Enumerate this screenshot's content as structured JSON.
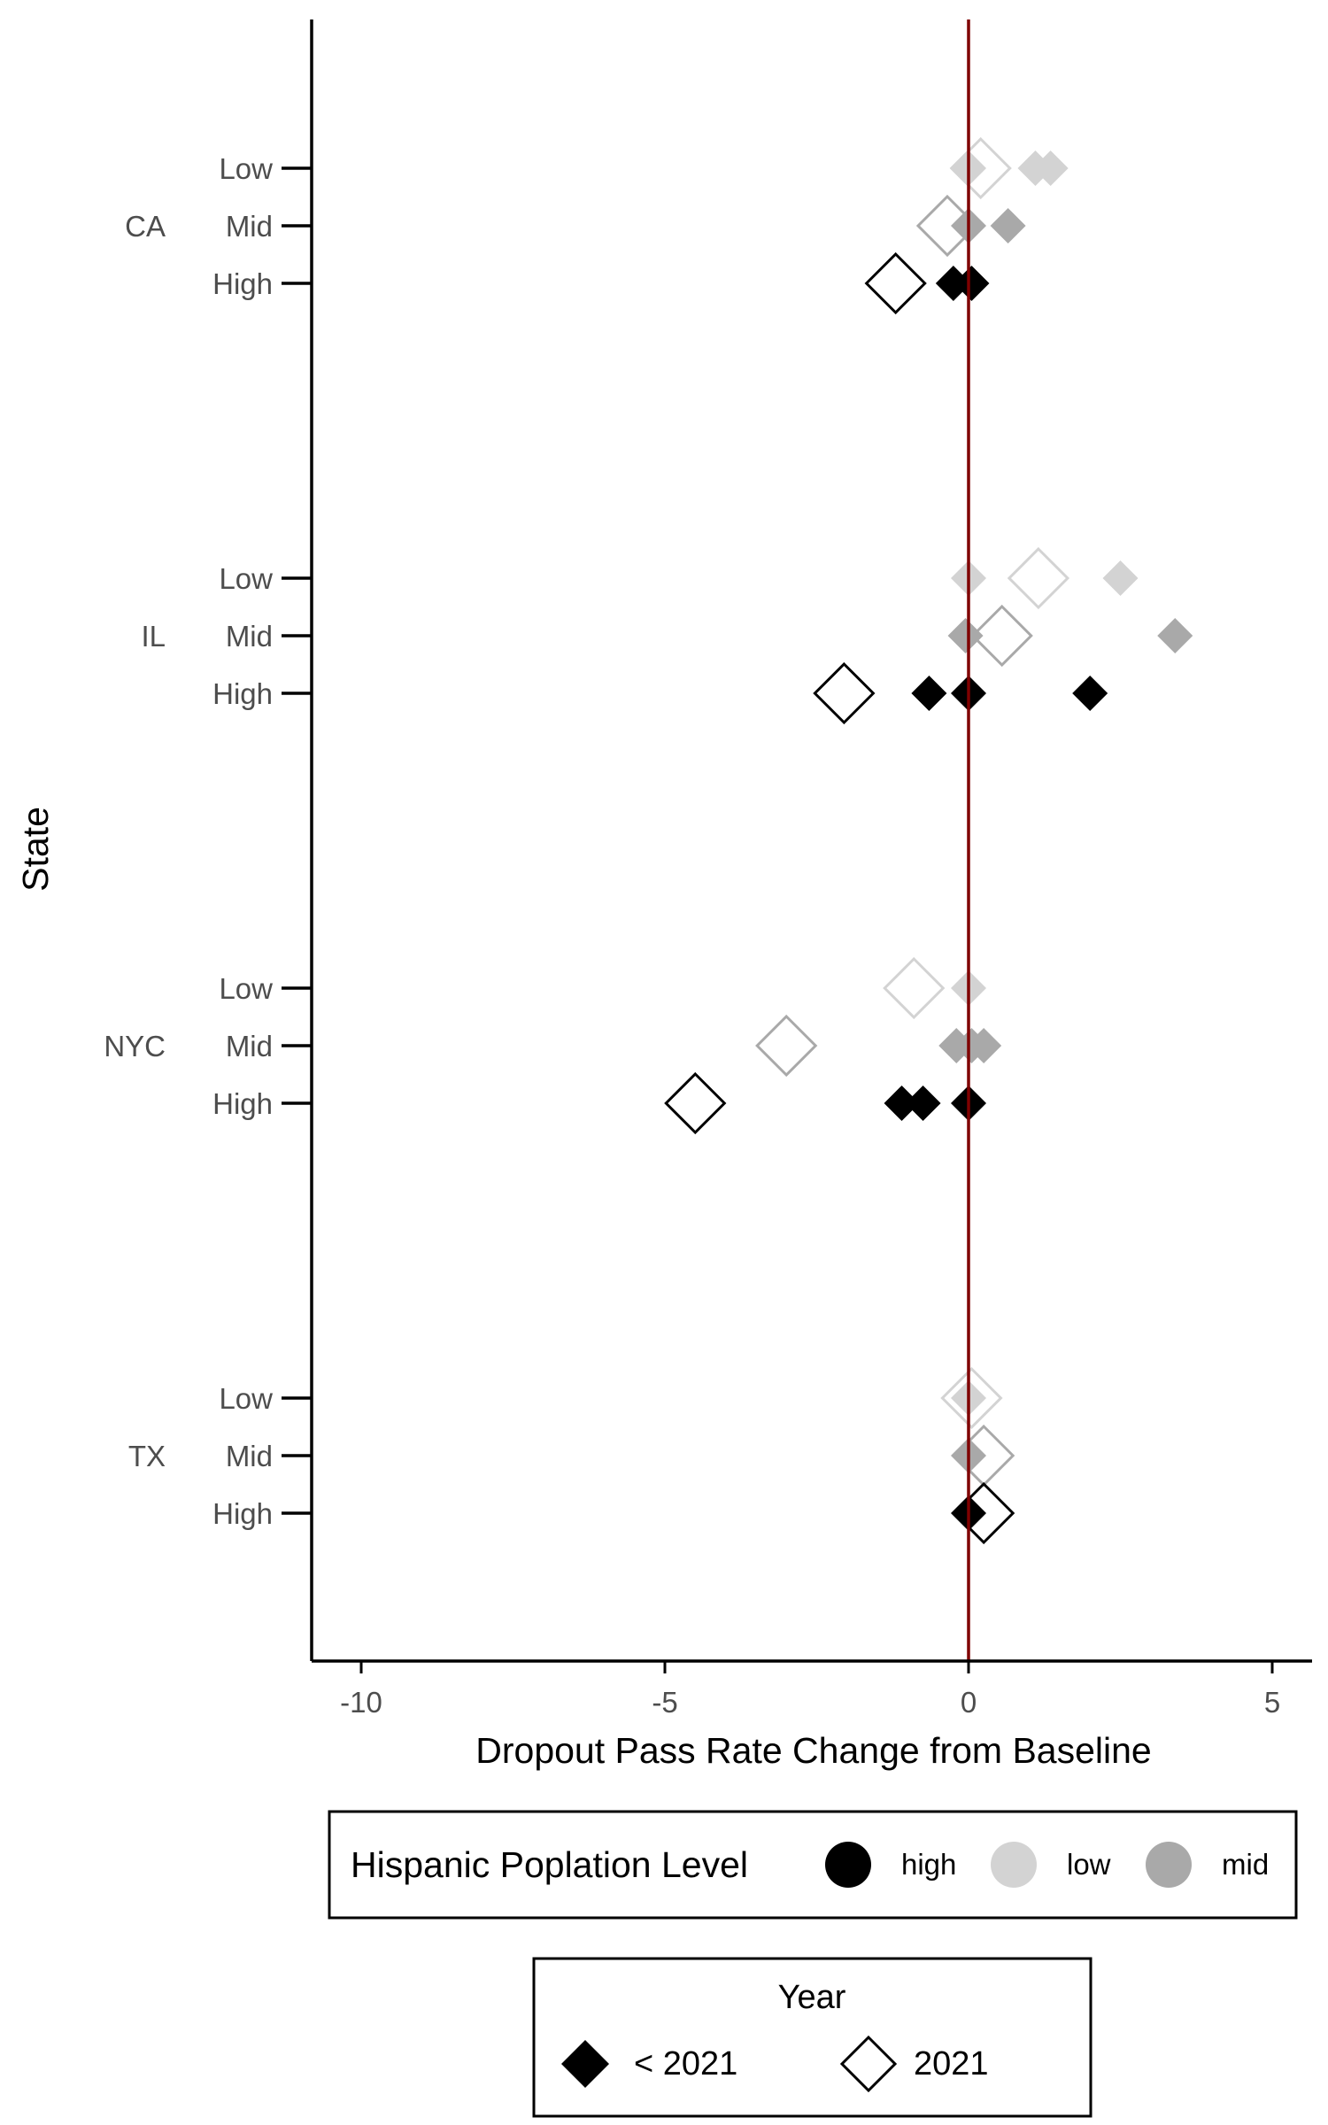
{
  "chart_data": {
    "type": "scatter",
    "xlabel": "Dropout Pass Rate Change from Baseline",
    "ylabel": "State",
    "xlim": [
      -10.5,
      5.7
    ],
    "x_ticks": [
      -10,
      -5,
      0,
      5
    ],
    "x_tick_labels": [
      "-10",
      "-5",
      "0",
      "5"
    ],
    "reference_line": {
      "x": 0,
      "color": "#7f0000"
    },
    "states": [
      "CA",
      "IL",
      "NYC",
      "TX"
    ],
    "levels": [
      "Low",
      "Mid",
      "High"
    ],
    "colors": {
      "high": "#000000",
      "low": "#d3d3d3",
      "mid": "#a9a9a9"
    },
    "points": [
      {
        "state": "CA",
        "level": "Low",
        "hisp": "low",
        "year": "<2021",
        "x": 0.0
      },
      {
        "state": "CA",
        "level": "Low",
        "hisp": "low",
        "year": "<2021",
        "x": 1.1
      },
      {
        "state": "CA",
        "level": "Low",
        "hisp": "low",
        "year": "<2021",
        "x": 1.35
      },
      {
        "state": "CA",
        "level": "Low",
        "hisp": "low",
        "year": "2021",
        "x": 0.2
      },
      {
        "state": "CA",
        "level": "Mid",
        "hisp": "mid",
        "year": "<2021",
        "x": 0.0
      },
      {
        "state": "CA",
        "level": "Mid",
        "hisp": "mid",
        "year": "<2021",
        "x": 0.65
      },
      {
        "state": "CA",
        "level": "Mid",
        "hisp": "mid",
        "year": "2021",
        "x": -0.35
      },
      {
        "state": "CA",
        "level": "High",
        "hisp": "high",
        "year": "<2021",
        "x": -0.25
      },
      {
        "state": "CA",
        "level": "High",
        "hisp": "high",
        "year": "<2021",
        "x": 0.05
      },
      {
        "state": "CA",
        "level": "High",
        "hisp": "high",
        "year": "2021",
        "x": -1.2
      },
      {
        "state": "IL",
        "level": "Low",
        "hisp": "low",
        "year": "<2021",
        "x": 0.0
      },
      {
        "state": "IL",
        "level": "Low",
        "hisp": "low",
        "year": "<2021",
        "x": 2.5
      },
      {
        "state": "IL",
        "level": "Low",
        "hisp": "low",
        "year": "2021",
        "x": 1.15
      },
      {
        "state": "IL",
        "level": "Mid",
        "hisp": "mid",
        "year": "<2021",
        "x": -0.05
      },
      {
        "state": "IL",
        "level": "Mid",
        "hisp": "mid",
        "year": "<2021",
        "x": 3.4
      },
      {
        "state": "IL",
        "level": "Mid",
        "hisp": "mid",
        "year": "2021",
        "x": 0.55
      },
      {
        "state": "IL",
        "level": "High",
        "hisp": "high",
        "year": "<2021",
        "x": -0.65
      },
      {
        "state": "IL",
        "level": "High",
        "hisp": "high",
        "year": "<2021",
        "x": 0.0
      },
      {
        "state": "IL",
        "level": "High",
        "hisp": "high",
        "year": "<2021",
        "x": 2.0
      },
      {
        "state": "IL",
        "level": "High",
        "hisp": "high",
        "year": "2021",
        "x": -2.05
      },
      {
        "state": "NYC",
        "level": "Low",
        "hisp": "low",
        "year": "<2021",
        "x": 0.0
      },
      {
        "state": "NYC",
        "level": "Low",
        "hisp": "low",
        "year": "2021",
        "x": -0.9
      },
      {
        "state": "NYC",
        "level": "Mid",
        "hisp": "mid",
        "year": "<2021",
        "x": -0.2
      },
      {
        "state": "NYC",
        "level": "Mid",
        "hisp": "mid",
        "year": "<2021",
        "x": 0.05
      },
      {
        "state": "NYC",
        "level": "Mid",
        "hisp": "mid",
        "year": "<2021",
        "x": 0.25
      },
      {
        "state": "NYC",
        "level": "Mid",
        "hisp": "mid",
        "year": "2021",
        "x": -3.0
      },
      {
        "state": "NYC",
        "level": "High",
        "hisp": "high",
        "year": "<2021",
        "x": -1.1
      },
      {
        "state": "NYC",
        "level": "High",
        "hisp": "high",
        "year": "<2021",
        "x": -0.75
      },
      {
        "state": "NYC",
        "level": "High",
        "hisp": "high",
        "year": "<2021",
        "x": 0.0
      },
      {
        "state": "NYC",
        "level": "High",
        "hisp": "high",
        "year": "2021",
        "x": -4.5
      },
      {
        "state": "TX",
        "level": "Low",
        "hisp": "low",
        "year": "<2021",
        "x": 0.0
      },
      {
        "state": "TX",
        "level": "Low",
        "hisp": "low",
        "year": "2021",
        "x": 0.05
      },
      {
        "state": "TX",
        "level": "Mid",
        "hisp": "mid",
        "year": "<2021",
        "x": 0.0
      },
      {
        "state": "TX",
        "level": "Mid",
        "hisp": "mid",
        "year": "2021",
        "x": 0.25
      },
      {
        "state": "TX",
        "level": "High",
        "hisp": "high",
        "year": "<2021",
        "x": 0.0
      },
      {
        "state": "TX",
        "level": "High",
        "hisp": "high",
        "year": "2021",
        "x": 0.25
      }
    ],
    "legend_hispanic": {
      "title": "Hispanic Poplation Level",
      "entries": [
        {
          "key": "high",
          "label": "high"
        },
        {
          "key": "low",
          "label": "low"
        },
        {
          "key": "mid",
          "label": "mid"
        }
      ]
    },
    "legend_year": {
      "title": "Year",
      "entries": [
        {
          "key": "<2021",
          "label": "< 2021"
        },
        {
          "key": "2021",
          "label": "2021"
        }
      ]
    }
  }
}
